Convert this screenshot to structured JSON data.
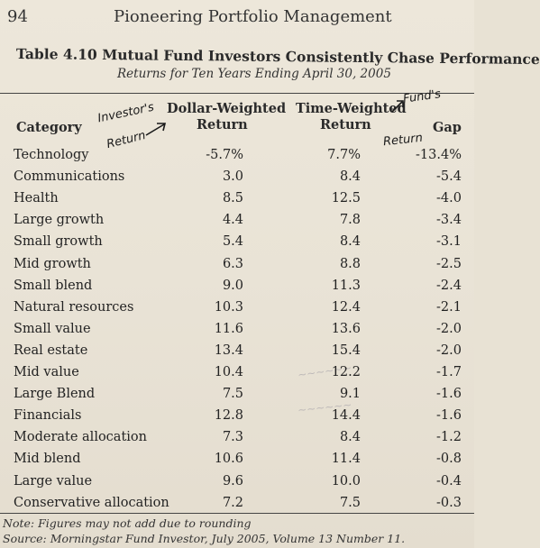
{
  "header": {
    "page_number": "94",
    "book_title": "Pioneering Portfolio Management"
  },
  "table": {
    "title": "Table 4.10 Mutual Fund Investors Consistently Chase Performance",
    "subtitle": "Returns for Ten Years Ending April 30, 2005",
    "columns": {
      "category": "Category",
      "dw_line1": "Dollar-Weighted",
      "dw_line2": "Return",
      "tw_line1": "Time-Weighted",
      "tw_line2": "Return",
      "gap": "Gap"
    },
    "rows": [
      {
        "category": "Technology",
        "dw": "-5.7%",
        "tw": "7.7%",
        "gap": "-13.4%"
      },
      {
        "category": "Communications",
        "dw": "3.0",
        "tw": "8.4",
        "gap": "-5.4"
      },
      {
        "category": "Health",
        "dw": "8.5",
        "tw": "12.5",
        "gap": "-4.0"
      },
      {
        "category": "Large growth",
        "dw": "4.4",
        "tw": "7.8",
        "gap": "-3.4"
      },
      {
        "category": "Small growth",
        "dw": "5.4",
        "tw": "8.4",
        "gap": "-3.1"
      },
      {
        "category": "Mid growth",
        "dw": "6.3",
        "tw": "8.8",
        "gap": "-2.5"
      },
      {
        "category": "Small blend",
        "dw": "9.0",
        "tw": "11.3",
        "gap": "-2.4"
      },
      {
        "category": "Natural resources",
        "dw": "10.3",
        "tw": "12.4",
        "gap": "-2.1"
      },
      {
        "category": "Small value",
        "dw": "11.6",
        "tw": "13.6",
        "gap": "-2.0"
      },
      {
        "category": "Real estate",
        "dw": "13.4",
        "tw": "15.4",
        "gap": "-2.0"
      },
      {
        "category": "Mid value",
        "dw": "10.4",
        "tw": "12.2",
        "gap": "-1.7"
      },
      {
        "category": "Large Blend",
        "dw": "7.5",
        "tw": "9.1",
        "gap": "-1.6"
      },
      {
        "category": "Financials",
        "dw": "12.8",
        "tw": "14.4",
        "gap": "-1.6"
      },
      {
        "category": "Moderate allocation",
        "dw": "7.3",
        "tw": "8.4",
        "gap": "-1.2"
      },
      {
        "category": "Mid blend",
        "dw": "10.6",
        "tw": "11.4",
        "gap": "-0.8"
      },
      {
        "category": "Large value",
        "dw": "9.6",
        "tw": "10.0",
        "gap": "-0.4"
      },
      {
        "category": "Conservative allocation",
        "dw": "7.2",
        "tw": "7.5",
        "gap": "-0.3"
      }
    ]
  },
  "annotations": {
    "investor_line1": "Investor's",
    "investor_line2": "Return",
    "fund_line1": "Fund's",
    "fund_line2": "Return"
  },
  "notes": {
    "note": "Note: Figures may not add due to rounding",
    "source": "Source: Morningstar Fund Investor, July 2005, Volume 13 Number 11."
  }
}
